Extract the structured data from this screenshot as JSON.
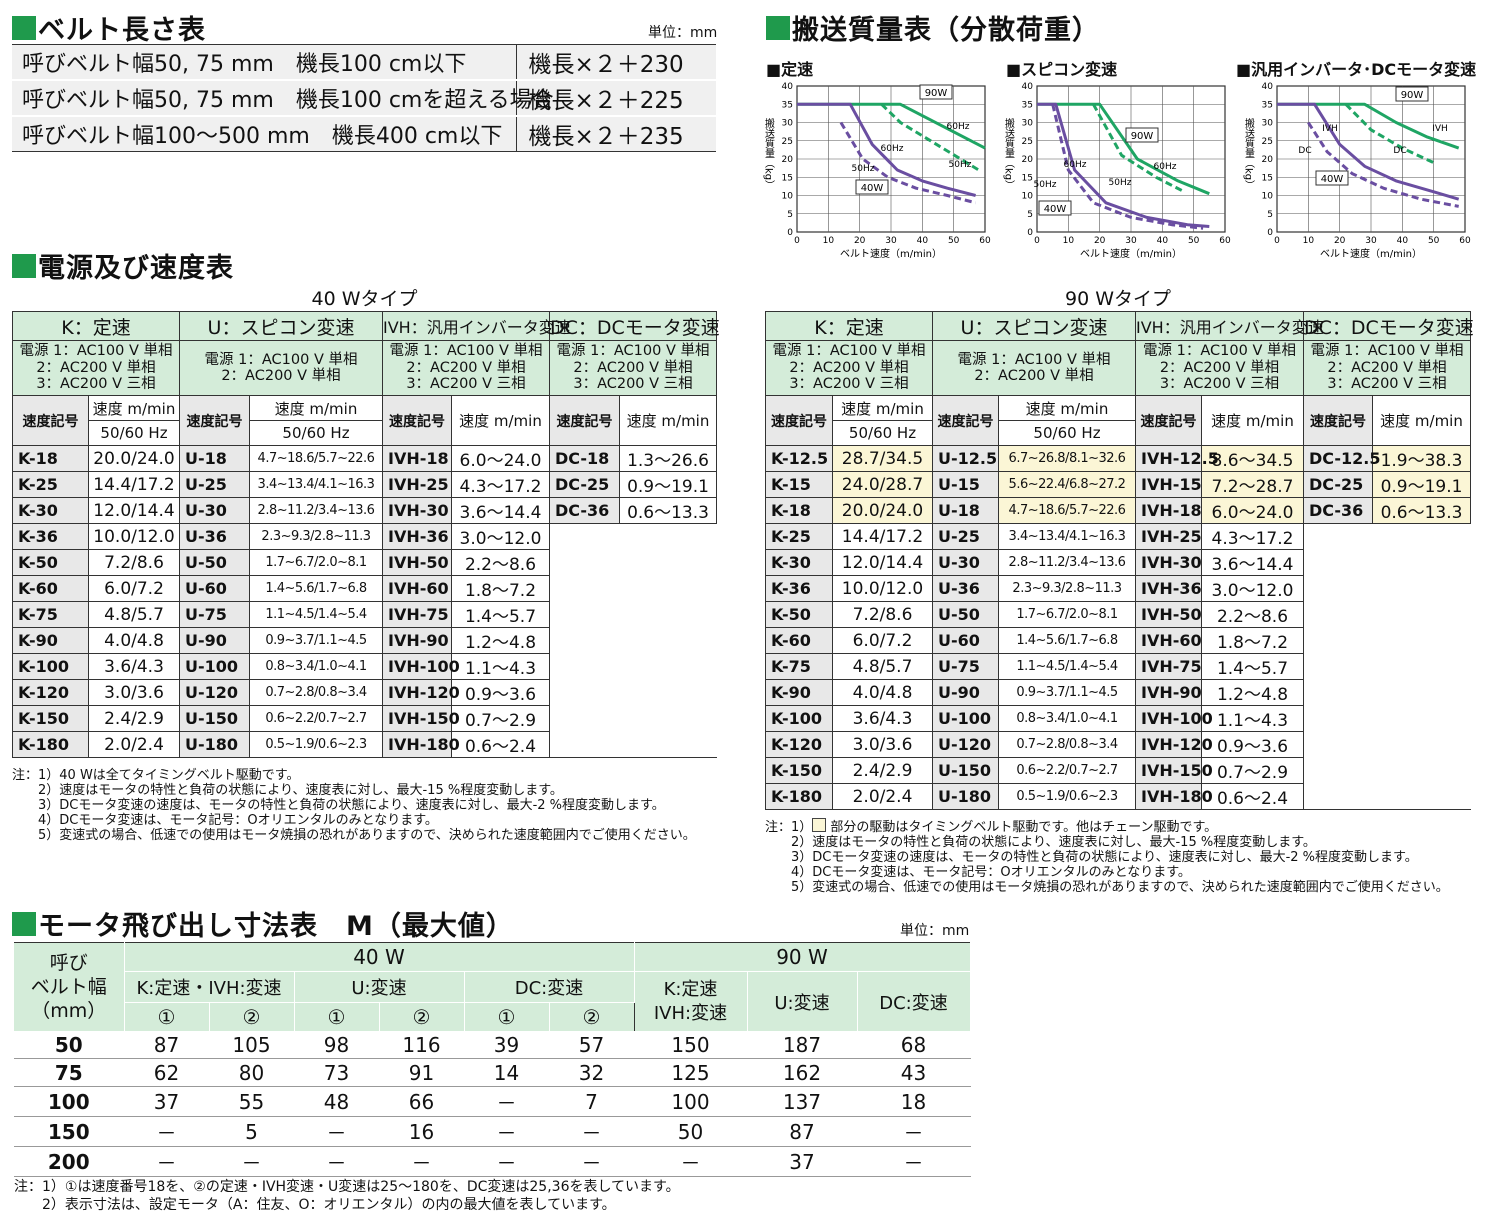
{
  "belt_length": {
    "title": "ベルト長さ表",
    "unit": "単位：mm",
    "rows": [
      {
        "condition": "呼びベルト幅50, 75 mm　機長100 cm以下",
        "formula": "機長×２＋230"
      },
      {
        "condition": "呼びベルト幅50, 75 mm　機長100 cmを超える場合",
        "formula": "機長×２＋225"
      },
      {
        "condition": "呼びベルト幅100～500 mm　機長400 cm以下",
        "formula": "機長×２＋235"
      }
    ]
  },
  "transport": {
    "title": "搬送質量表（分散荷重）",
    "ylabel": "搬送質量（kg）",
    "xlabel": "ベルト速度（m/min）"
  },
  "chart_data": [
    {
      "type": "line",
      "title": "■定速",
      "xlabel": "ベルト速度（m/min）",
      "ylabel": "搬送質量（kg）",
      "xlim": [
        0,
        60
      ],
      "ylim": [
        0,
        40
      ],
      "xticks": [
        "0",
        "10",
        "20",
        "30",
        "40",
        "50",
        "60"
      ],
      "yticks": [
        "0",
        "5",
        "10",
        "15",
        "20",
        "25",
        "30",
        "35",
        "40"
      ],
      "grid": true,
      "annotations": [
        "90W",
        "60Hz",
        "50Hz",
        "60Hz",
        "50Hz",
        "40W"
      ],
      "series": [
        {
          "color": "#1fa564",
          "dash": false,
          "x": [
            0,
            33,
            60
          ],
          "y": [
            35,
            35,
            23
          ]
        },
        {
          "color": "#1fa564",
          "dash": true,
          "x": [
            27,
            33,
            58
          ],
          "y": [
            35,
            30,
            17
          ]
        },
        {
          "color": "#6a4ea1",
          "dash": false,
          "x": [
            0,
            17,
            24,
            32,
            40,
            48,
            57
          ],
          "y": [
            35,
            35,
            24,
            17,
            14,
            12,
            10
          ]
        },
        {
          "color": "#6a4ea1",
          "dash": true,
          "x": [
            14,
            21,
            29,
            38,
            48,
            57
          ],
          "y": [
            30,
            20,
            15,
            12,
            10,
            8
          ]
        }
      ]
    },
    {
      "type": "line",
      "title": "■スピコン変速",
      "xlabel": "ベルト速度（m/min）",
      "ylabel": "搬送質量（kg）",
      "xlim": [
        0,
        60
      ],
      "ylim": [
        0,
        40
      ],
      "xticks": [
        "0",
        "10",
        "20",
        "30",
        "40",
        "50",
        "60"
      ],
      "yticks": [
        "0",
        "5",
        "10",
        "15",
        "20",
        "25",
        "30",
        "35",
        "40"
      ],
      "grid": true,
      "annotations": [
        "90W",
        "60Hz",
        "50Hz",
        "60Hz",
        "50Hz",
        "40W"
      ],
      "series": [
        {
          "color": "#1fa564",
          "dash": false,
          "x": [
            0,
            20,
            32,
            45,
            55
          ],
          "y": [
            35,
            35,
            20,
            14,
            10.5
          ]
        },
        {
          "color": "#1fa564",
          "dash": true,
          "x": [
            18,
            27,
            38,
            47
          ],
          "y": [
            35,
            21,
            15,
            11
          ]
        },
        {
          "color": "#6a4ea1",
          "dash": false,
          "x": [
            0,
            6,
            12,
            22,
            35,
            48,
            55
          ],
          "y": [
            35,
            35,
            17,
            8,
            4,
            2,
            1.5
          ]
        },
        {
          "color": "#6a4ea1",
          "dash": true,
          "x": [
            5,
            10,
            18,
            30,
            43,
            53
          ],
          "y": [
            35,
            17,
            8,
            4,
            2,
            1
          ]
        }
      ]
    },
    {
      "type": "line",
      "title": "■汎用インバータ･DCモータ変速",
      "xlabel": "ベルト速度（m/min）",
      "ylabel": "搬送質量（kg）",
      "xlim": [
        0,
        60
      ],
      "ylim": [
        0,
        40
      ],
      "xticks": [
        "0",
        "10",
        "20",
        "30",
        "40",
        "50",
        "60"
      ],
      "yticks": [
        "0",
        "5",
        "10",
        "15",
        "20",
        "25",
        "30",
        "35",
        "40"
      ],
      "grid": true,
      "annotations": [
        "90W",
        "IVH",
        "IVH",
        "DC",
        "DC",
        "40W"
      ],
      "series": [
        {
          "color": "#1fa564",
          "dash": false,
          "x": [
            0,
            28,
            38,
            48,
            58
          ],
          "y": [
            35,
            35,
            30,
            26,
            23
          ]
        },
        {
          "color": "#1fa564",
          "dash": true,
          "x": [
            22,
            30,
            40,
            50
          ],
          "y": [
            35,
            28,
            23,
            19
          ]
        },
        {
          "color": "#6a4ea1",
          "dash": false,
          "x": [
            0,
            12,
            20,
            28,
            38,
            50,
            58
          ],
          "y": [
            35,
            35,
            24,
            18,
            14,
            11,
            9
          ]
        },
        {
          "color": "#6a4ea1",
          "dash": true,
          "x": [
            10,
            16,
            24,
            34,
            46,
            58
          ],
          "y": [
            30,
            22,
            16,
            12,
            9,
            7
          ]
        }
      ]
    }
  ],
  "speed": {
    "title": "電源及び速度表",
    "headers": {
      "k": "K：定速",
      "u": "U：スピコン変速",
      "ivh": "IVH：汎用インバータ変速",
      "dc": "DC：DCモータ変速",
      "power3": [
        "電源 1：AC100 V 単相",
        "2：AC200 V 単相",
        "3：AC200 V 三相"
      ],
      "power2": [
        "電源 1：AC100 V 単相",
        "2：AC200 V 単相"
      ],
      "code": "速度記号",
      "speed": "速度 m/min",
      "hz": "50/60 Hz"
    },
    "w40": {
      "caption": "40 Wタイプ",
      "rows": [
        [
          "K-18",
          "20.0/24.0",
          "U-18",
          "4.7~18.6/5.7~22.6",
          "IVH-18",
          "6.0～24.0",
          "DC-18",
          "1.3～26.6"
        ],
        [
          "K-25",
          "14.4/17.2",
          "U-25",
          "3.4~13.4/4.1~16.3",
          "IVH-25",
          "4.3～17.2",
          "DC-25",
          "0.9～19.1"
        ],
        [
          "K-30",
          "12.0/14.4",
          "U-30",
          "2.8~11.2/3.4~13.6",
          "IVH-30",
          "3.6～14.4",
          "DC-36",
          "0.6～13.3"
        ],
        [
          "K-36",
          "10.0/12.0",
          "U-36",
          "2.3~9.3/2.8~11.3",
          "IVH-36",
          "3.0～12.0"
        ],
        [
          "K-50",
          "7.2/8.6",
          "U-50",
          "1.7~6.7/2.0~8.1",
          "IVH-50",
          "2.2～8.6"
        ],
        [
          "K-60",
          "6.0/7.2",
          "U-60",
          "1.4~5.6/1.7~6.8",
          "IVH-60",
          "1.8～7.2"
        ],
        [
          "K-75",
          "4.8/5.7",
          "U-75",
          "1.1~4.5/1.4~5.4",
          "IVH-75",
          "1.4～5.7"
        ],
        [
          "K-90",
          "4.0/4.8",
          "U-90",
          "0.9~3.7/1.1~4.5",
          "IVH-90",
          "1.2～4.8"
        ],
        [
          "K-100",
          "3.6/4.3",
          "U-100",
          "0.8~3.4/1.0~4.1",
          "IVH-100",
          "1.1～4.3"
        ],
        [
          "K-120",
          "3.0/3.6",
          "U-120",
          "0.7~2.8/0.8~3.4",
          "IVH-120",
          "0.9～3.6"
        ],
        [
          "K-150",
          "2.4/2.9",
          "U-150",
          "0.6~2.2/0.7~2.7",
          "IVH-150",
          "0.7～2.9"
        ],
        [
          "K-180",
          "2.0/2.4",
          "U-180",
          "0.5~1.9/0.6~2.3",
          "IVH-180",
          "0.6～2.4"
        ]
      ],
      "notes": "注：1）40 Wは全てタイミングベルト駆動です。\n　　2）速度はモータの特性と負荷の状態により、速度表に対し、最大-15 %程度変動します。\n　　3）DCモータ変速の速度は、モータの特性と負荷の状態により、速度表に対し、最大-2 %程度変動します。\n　　4）DCモータ変速は、モータ記号：Oオリエンタルのみとなります。\n　　5）変速式の場合、低速での使用はモータ焼損の恐れがありますので、決められた速度範囲内でご使用ください。"
    },
    "w90": {
      "caption": "90 Wタイプ",
      "rows": [
        [
          "K-12.5",
          "28.7/34.5",
          "U-12.5",
          "6.7~26.8/8.1~32.6",
          "IVH-12.5",
          "8.6～34.5",
          "DC-12.5",
          "1.9～38.3"
        ],
        [
          "K-15",
          "24.0/28.7",
          "U-15",
          "5.6~22.4/6.8~27.2",
          "IVH-15",
          "7.2～28.7",
          "DC-25",
          "0.9～19.1"
        ],
        [
          "K-18",
          "20.0/24.0",
          "U-18",
          "4.7~18.6/5.7~22.6",
          "IVH-18",
          "6.0～24.0",
          "DC-36",
          "0.6～13.3"
        ],
        [
          "K-25",
          "14.4/17.2",
          "U-25",
          "3.4~13.4/4.1~16.3",
          "IVH-25",
          "4.3～17.2"
        ],
        [
          "K-30",
          "12.0/14.4",
          "U-30",
          "2.8~11.2/3.4~13.6",
          "IVH-30",
          "3.6～14.4"
        ],
        [
          "K-36",
          "10.0/12.0",
          "U-36",
          "2.3~9.3/2.8~11.3",
          "IVH-36",
          "3.0～12.0"
        ],
        [
          "K-50",
          "7.2/8.6",
          "U-50",
          "1.7~6.7/2.0~8.1",
          "IVH-50",
          "2.2～8.6"
        ],
        [
          "K-60",
          "6.0/7.2",
          "U-60",
          "1.4~5.6/1.7~6.8",
          "IVH-60",
          "1.8～7.2"
        ],
        [
          "K-75",
          "4.8/5.7",
          "U-75",
          "1.1~4.5/1.4~5.4",
          "IVH-75",
          "1.4～5.7"
        ],
        [
          "K-90",
          "4.0/4.8",
          "U-90",
          "0.9~3.7/1.1~4.5",
          "IVH-90",
          "1.2～4.8"
        ],
        [
          "K-100",
          "3.6/4.3",
          "U-100",
          "0.8~3.4/1.0~4.1",
          "IVH-100",
          "1.1～4.3"
        ],
        [
          "K-120",
          "3.0/3.6",
          "U-120",
          "0.7~2.8/0.8~3.4",
          "IVH-120",
          "0.9～3.6"
        ],
        [
          "K-150",
          "2.4/2.9",
          "U-150",
          "0.6~2.2/0.7~2.7",
          "IVH-150",
          "0.7～2.9"
        ],
        [
          "K-180",
          "2.0/2.4",
          "U-180",
          "0.5~1.9/0.6~2.3",
          "IVH-180",
          "0.6～2.4"
        ]
      ],
      "notes_pre": "注：1）",
      "notes_post": " 部分の駆動はタイミングベルト駆動です。他はチェーン駆動です。",
      "notes_rest": "　　2）速度はモータの特性と負荷の状態により、速度表に対し、最大-15 %程度変動します。\n　　3）DCモータ変速の速度は、モータの特性と負荷の状態により、速度表に対し、最大-2 %程度変動します。\n　　4）DCモータ変速は、モータ記号：Oオリエンタルのみとなります。\n　　5）変速式の場合、低速での使用はモータ焼損の恐れがありますので、決められた速度範囲内でご使用ください。"
    }
  },
  "motor": {
    "title": "モータ飛び出し寸法表　M（最大値）",
    "unit": "単位：mm",
    "width_header": [
      "呼び",
      "ベルト幅",
      "（mm）"
    ],
    "w40": "40 W",
    "w90": "90 W",
    "h40": [
      "K:定速・IVH:変速",
      "U:変速",
      "DC:変速"
    ],
    "h90": [
      "K:定速",
      "IVH:変速",
      "U:変速",
      "DC:変速"
    ],
    "circ": [
      "①",
      "②"
    ],
    "rows": [
      [
        "50",
        "87",
        "105",
        "98",
        "116",
        "39",
        "57",
        "150",
        "187",
        "68"
      ],
      [
        "75",
        "62",
        "80",
        "73",
        "91",
        "14",
        "32",
        "125",
        "162",
        "43"
      ],
      [
        "100",
        "37",
        "55",
        "48",
        "66",
        "－",
        "7",
        "100",
        "137",
        "18"
      ],
      [
        "150",
        "－",
        "5",
        "－",
        "16",
        "－",
        "－",
        "50",
        "87",
        "－"
      ],
      [
        "200",
        "－",
        "－",
        "－",
        "－",
        "－",
        "－",
        "－",
        "37",
        "－"
      ]
    ],
    "notes": "注：1）①は速度番号18を、②の定速・IVH変速・U変速は25～180を、DC変速は25,36を表しています。\n　　2）表示寸法は、設定モータ（A：住友、O：オリエンタル）の内の最大値を表しています。"
  }
}
